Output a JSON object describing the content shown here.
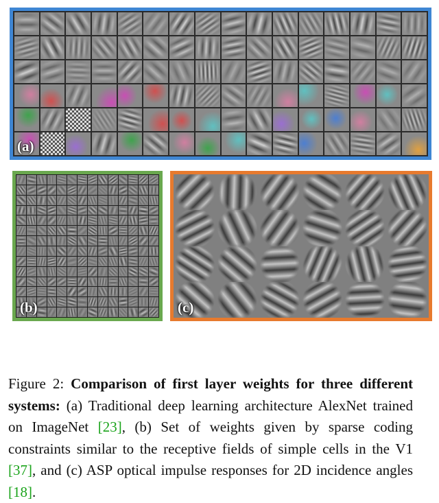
{
  "figure": {
    "panels": [
      {
        "label": "(a)",
        "color": "#3f86d3"
      },
      {
        "label": "(b)",
        "color": "#6aa84f"
      },
      {
        "label": "(c)",
        "color": "#e77a2e"
      }
    ],
    "caption": {
      "prefix": "Figure 2: ",
      "bold": "Comparison of first layer weights for three different systems:",
      "part1": " (a) Traditional deep learning architecture AlexNet trained on ImageNet ",
      "cite1": "[23]",
      "part2": ", (b) Set of weights given by sparse coding constraints similar to the receptive fields of simple cells in the V1 ",
      "cite2": "[37]",
      "part3": ", and (c) ASP optical impulse responses for 2D incidence angles ",
      "cite3": "[18]",
      "part4": "."
    }
  }
}
